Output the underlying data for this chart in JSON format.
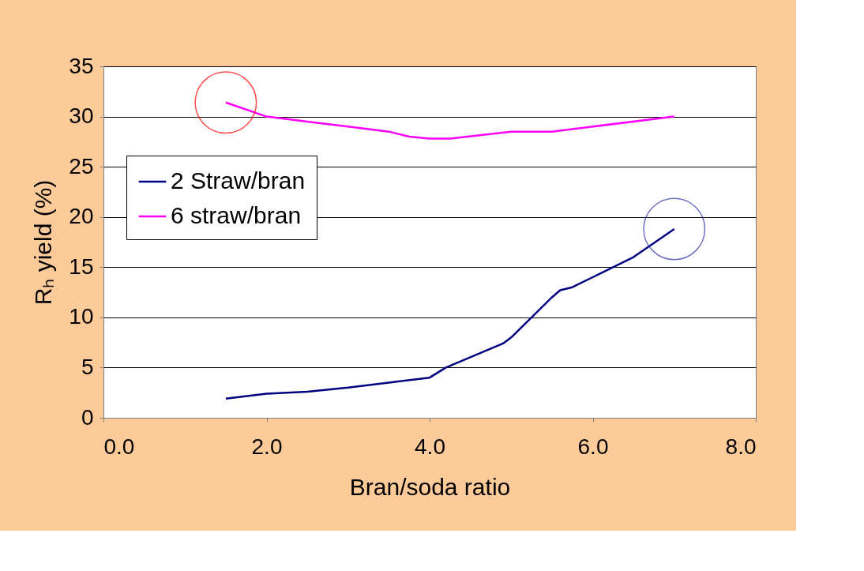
{
  "chart_data": {
    "type": "line",
    "xlabel": "Bran/soda ratio",
    "ylabel": "Rₕ yield (%)",
    "xlim": [
      0,
      8
    ],
    "xticks": [
      {
        "value": 0,
        "label": "0.0"
      },
      {
        "value": 2,
        "label": "2.0"
      },
      {
        "value": 4,
        "label": "4.0"
      },
      {
        "value": 6,
        "label": "6.0"
      },
      {
        "value": 8,
        "label": "8.0"
      }
    ],
    "ylim": [
      0,
      35
    ],
    "yticks": [
      0,
      5,
      10,
      15,
      20,
      25,
      30,
      35
    ],
    "grid": "y",
    "legend": "top left",
    "marker": "none",
    "line_style": "solid",
    "series": [
      {
        "name": "2 Straw/bran",
        "color": "#000080",
        "x": [
          1.5,
          2.0,
          2.5,
          3.0,
          3.5,
          4.0,
          4.2,
          4.9,
          5.0,
          5.5,
          5.6,
          5.75,
          6.0,
          6.5,
          7.0
        ],
        "values": [
          1.9,
          2.4,
          2.6,
          3.0,
          3.5,
          4.0,
          5.0,
          7.4,
          8.0,
          12.0,
          12.7,
          13.0,
          14.0,
          16.0,
          18.8
        ]
      },
      {
        "name": "6 straw/bran",
        "color": "#ff00ff",
        "x": [
          1.5,
          2.0,
          2.5,
          3.0,
          3.5,
          3.75,
          4.0,
          4.25,
          5.0,
          5.5,
          6.0,
          7.0
        ],
        "values": [
          31.4,
          30.0,
          29.5,
          29.0,
          28.5,
          28.0,
          27.8,
          27.8,
          28.5,
          28.5,
          29.0,
          30.0
        ]
      }
    ]
  }
}
